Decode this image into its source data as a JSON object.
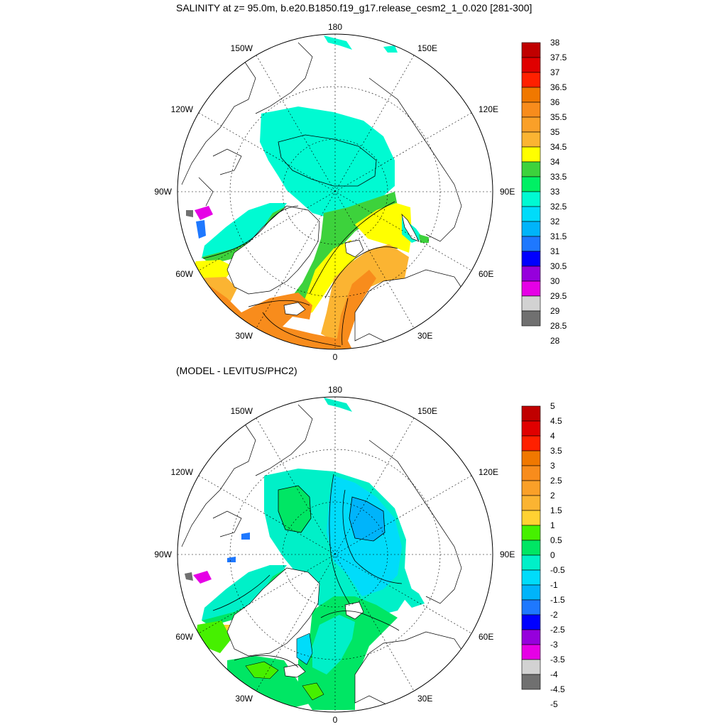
{
  "title": "SALINITY at z=  95.0m, b.e20.B1850.f19_g17.release_cesm2_1_0.020 [281-300]",
  "subtitle": "(MODEL - LEVITUS/PHC2)",
  "lon_labels": {
    "top": "180",
    "bottom": "0",
    "left": "90W",
    "right": "90E",
    "upper_left_1": "150W",
    "upper_left_2": "120W",
    "lower_left_1": "60W",
    "lower_left_2": "30W",
    "upper_right_1": "150E",
    "upper_right_2": "120E",
    "lower_right_1": "60E",
    "lower_right_2": "30E"
  },
  "colorbar_top": {
    "labels": [
      "38",
      "37.5",
      "37",
      "36.5",
      "36",
      "35.5",
      "35",
      "34.5",
      "34",
      "33.5",
      "33",
      "32.5",
      "32",
      "31.5",
      "31",
      "30.5",
      "30",
      "29.5",
      "29",
      "28.5",
      "28"
    ]
  },
  "colorbar_bottom": {
    "labels": [
      "5",
      "4.5",
      "4",
      "3.5",
      "3",
      "2.5",
      "2",
      "1.5",
      "1",
      "0.5",
      "0",
      "-0.5",
      "-1",
      "-1.5",
      "-2",
      "-2.5",
      "-3",
      "-3.5",
      "-4",
      "-4.5",
      "-5"
    ]
  },
  "colors": {
    "top_scale": [
      "#c00000",
      "#e00000",
      "#ff2000",
      "#f07800",
      "#f88c1c",
      "#faa028",
      "#fbb432",
      "#ffff00",
      "#3dd23c",
      "#00f064",
      "#00fad2",
      "#00dcfa",
      "#00b4fa",
      "#1e78ff",
      "#0000ff",
      "#9600dc",
      "#e600e6",
      "#d2d2d2",
      "#707070"
    ],
    "bottom_scale": [
      "#c00000",
      "#e00000",
      "#ff2000",
      "#f07800",
      "#f88c1c",
      "#faa028",
      "#fbb432",
      "#ffd232",
      "#46f000",
      "#00e664",
      "#00f0c8",
      "#00dcfa",
      "#00b4fa",
      "#1e78ff",
      "#0000ff",
      "#9600dc",
      "#e600e6",
      "#d2d2d2",
      "#707070"
    ]
  }
}
